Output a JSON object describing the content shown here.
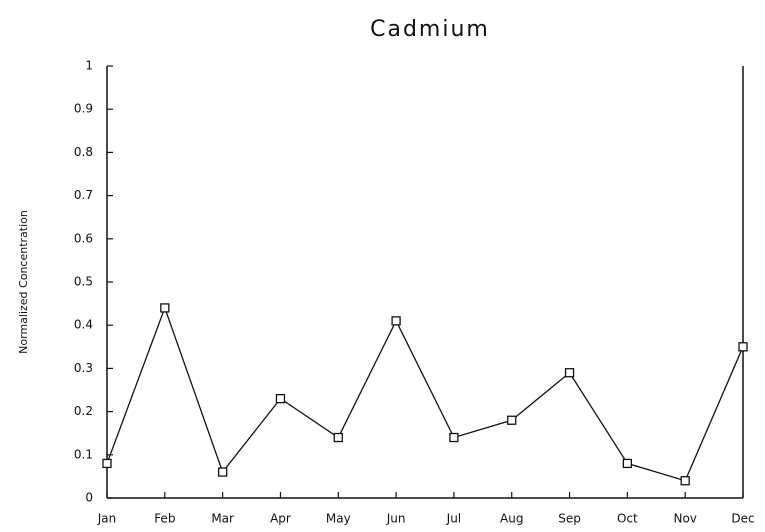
{
  "chart_data": {
    "type": "line",
    "title": "Cadmium",
    "y_label": "Normalized Concentration",
    "categories": [
      "Jan",
      "Feb",
      "Mar",
      "Apr",
      "May",
      "Jun",
      "Jul",
      "Aug",
      "Sep",
      "Oct",
      "Nov",
      "Dec"
    ],
    "series": [
      {
        "name": "Cadmium",
        "color": "#111111",
        "values": [
          0.08,
          0.44,
          0.06,
          0.23,
          0.14,
          0.41,
          0.14,
          0.18,
          0.29,
          0.08,
          0.04,
          0.35
        ]
      }
    ],
    "ylim": [
      0,
      1
    ],
    "yticks": [
      0,
      0.1,
      0.2,
      0.3,
      0.4,
      0.5,
      0.6,
      0.7,
      0.8,
      0.9,
      1
    ],
    "grid": false,
    "markers": "square"
  }
}
